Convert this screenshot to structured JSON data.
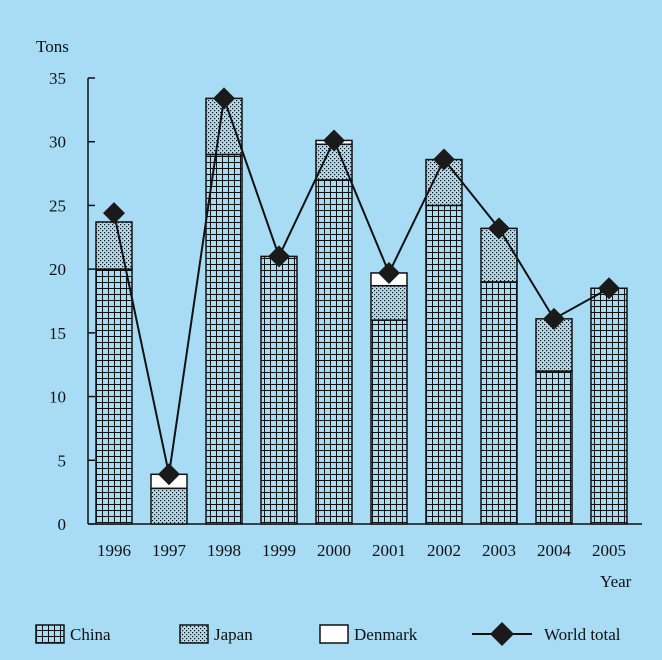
{
  "colors": {
    "background": "#a8dcf5",
    "bar_fill": "#a8dcf5",
    "stroke": "#111111",
    "denmark_fill": "#ffffff"
  },
  "chart_data": {
    "type": "bar",
    "stacked": true,
    "title": "",
    "xlabel": "Year",
    "ylabel": "Tons",
    "ylim": [
      0,
      35
    ],
    "yticks": [
      "0",
      "5",
      "10",
      "15",
      "20",
      "25",
      "30",
      "35"
    ],
    "categories": [
      "1996",
      "1997",
      "1998",
      "1999",
      "2000",
      "2001",
      "2002",
      "2003",
      "2004",
      "2005"
    ],
    "series": [
      {
        "name": "China",
        "pattern": "grid",
        "values": [
          20,
          0,
          29,
          21,
          27,
          16,
          25,
          19,
          12,
          18.5
        ]
      },
      {
        "name": "Japan",
        "pattern": "dots",
        "values": [
          3.7,
          2.8,
          4.4,
          0,
          2.8,
          2.7,
          3.6,
          4.2,
          4.1,
          0
        ]
      },
      {
        "name": "Denmark",
        "pattern": "blank",
        "values": [
          0,
          1.1,
          0,
          0,
          0.3,
          1.0,
          0,
          0,
          0,
          0
        ]
      }
    ],
    "line": {
      "name": "World total",
      "marker": "diamond",
      "values": [
        24.4,
        3.9,
        33.4,
        21.0,
        30.1,
        19.7,
        28.6,
        23.2,
        16.1,
        18.5
      ]
    },
    "legend": {
      "position": "bottom",
      "items": [
        "China",
        "Japan",
        "Denmark",
        "World total"
      ]
    },
    "grid": false
  }
}
